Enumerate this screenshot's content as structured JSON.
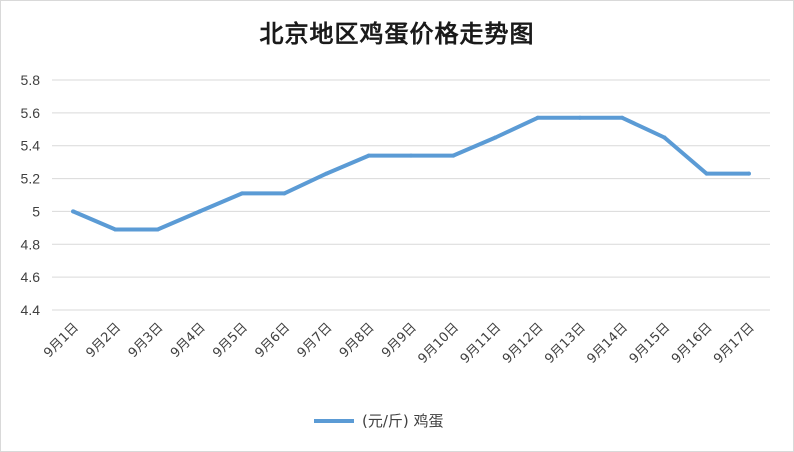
{
  "chart_data": {
    "type": "line",
    "title": "北京地区鸡蛋价格走势图",
    "categories": [
      "9月1日",
      "9月2日",
      "9月3日",
      "9月4日",
      "9月5日",
      "9月6日",
      "9月7日",
      "9月8日",
      "9月9日",
      "9月10日",
      "9月11日",
      "9月12日",
      "9月13日",
      "9月14日",
      "9月15日",
      "9月16日",
      "9月17日"
    ],
    "series": [
      {
        "name": "(元/斤) 鸡蛋",
        "color": "#5b9bd5",
        "values": [
          5.0,
          4.89,
          4.89,
          5.0,
          5.11,
          5.11,
          5.23,
          5.34,
          5.34,
          5.34,
          5.45,
          5.57,
          5.57,
          5.57,
          5.45,
          5.23,
          5.23
        ]
      }
    ],
    "ylim": [
      4.4,
      5.8
    ],
    "yticks": [
      "4.4",
      "4.6",
      "4.8",
      "5",
      "5.2",
      "5.4",
      "5.6",
      "5.8"
    ],
    "grid": true,
    "legend": "bottom",
    "gridline_color": "#d9d9d9"
  }
}
